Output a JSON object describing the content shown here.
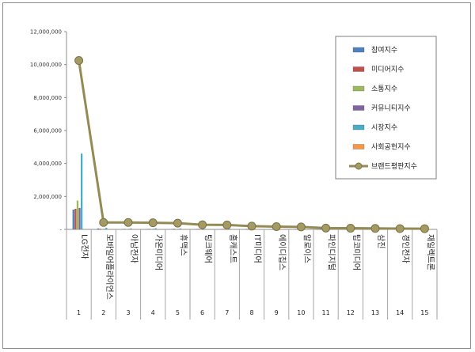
{
  "chart_data": {
    "type": "bar",
    "title": "",
    "xlabel": "",
    "ylabel": "",
    "ylim": [
      0,
      12000000
    ],
    "yticks": [
      "12,000,000",
      "10,000,000",
      "8,000,000",
      "6,000,000",
      "4,000,000",
      "2,000,000",
      "-"
    ],
    "ytick_values": [
      12000000,
      10000000,
      8000000,
      6000000,
      4000000,
      2000000,
      0
    ],
    "grid": false,
    "legend_position": "top-right",
    "categories": [
      "LG전자",
      "모바일어플라이언스",
      "아남전자",
      "가온미디어",
      "휴맥스",
      "팅크웨어",
      "홈캐스트",
      "IT미디어",
      "에이디칩스",
      "알로이스",
      "파인디지털",
      "탑코미디어",
      "삼진",
      "경인전자",
      "재일렉트론"
    ],
    "category_numbers": [
      "1",
      "2",
      "3",
      "4",
      "5",
      "6",
      "7",
      "8",
      "9",
      "10",
      "11",
      "12",
      "13",
      "14",
      "15"
    ],
    "series": [
      {
        "name": "참여지수",
        "kind": "bar",
        "color": "#4f81bd",
        "values": [
          1200000,
          60000,
          20000,
          20000,
          30000,
          10000,
          20000,
          10000,
          10000,
          10000,
          10000,
          10000,
          5000,
          5000,
          5000
        ]
      },
      {
        "name": "미디어지수",
        "kind": "bar",
        "color": "#c0504d",
        "values": [
          1250000,
          40000,
          30000,
          30000,
          40000,
          30000,
          30000,
          20000,
          20000,
          20000,
          10000,
          10000,
          10000,
          10000,
          10000
        ]
      },
      {
        "name": "소통지수",
        "kind": "bar",
        "color": "#9bbb59",
        "values": [
          1750000,
          30000,
          20000,
          20000,
          30000,
          20000,
          20000,
          10000,
          10000,
          10000,
          10000,
          10000,
          5000,
          5000,
          5000
        ]
      },
      {
        "name": "커뮤니티지수",
        "kind": "bar",
        "color": "#8064a2",
        "values": [
          1300000,
          20000,
          10000,
          10000,
          20000,
          10000,
          10000,
          10000,
          10000,
          10000,
          5000,
          5000,
          5000,
          5000,
          5000
        ]
      },
      {
        "name": "시장지수",
        "kind": "bar",
        "color": "#4bacc6",
        "values": [
          4600000,
          100000,
          60000,
          70000,
          60000,
          30000,
          40000,
          20000,
          20000,
          20000,
          10000,
          10000,
          10000,
          10000,
          10000
        ]
      },
      {
        "name": "사회공헌지수",
        "kind": "bar",
        "color": "#f79646",
        "values": [
          30000,
          5000,
          5000,
          5000,
          5000,
          5000,
          5000,
          5000,
          5000,
          5000,
          5000,
          5000,
          5000,
          5000,
          5000
        ]
      },
      {
        "name": "브랜드평판지수",
        "kind": "line",
        "color": "#948a54",
        "values": [
          10250000,
          420000,
          420000,
          400000,
          380000,
          280000,
          270000,
          200000,
          170000,
          150000,
          80000,
          70000,
          60000,
          50000,
          45000
        ]
      }
    ]
  }
}
